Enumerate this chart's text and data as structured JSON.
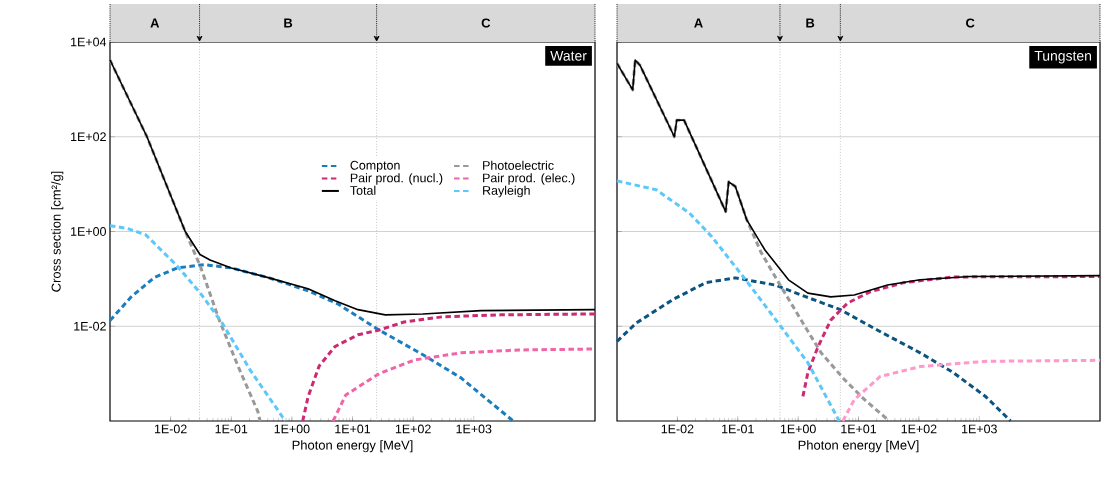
{
  "chart_data": [
    {
      "type": "line",
      "title": "Water",
      "xlabel": "Photon energy [MeV]",
      "ylabel": "Cross section [cm²/g]",
      "log": "xy",
      "grid": "y",
      "legend": "right",
      "xlim": [
        0.001,
        100000
      ],
      "ylim": [
        0.0001,
        10000
      ],
      "xticks": [
        {
          "value": 0.01,
          "label": "1E-02"
        },
        {
          "value": 0.1,
          "label": "1E-01"
        },
        {
          "value": 1,
          "label": "1E+00"
        },
        {
          "value": 10,
          "label": "1E+01"
        },
        {
          "value": 100,
          "label": "1E+02"
        },
        {
          "value": 1000,
          "label": "1E+03"
        }
      ],
      "yticks": [
        {
          "value": 0.01,
          "label": "1E-02"
        },
        {
          "value": 1,
          "label": "1E+00"
        },
        {
          "value": 100,
          "label": "1E+02"
        },
        {
          "value": 10000,
          "label": "1E+04"
        }
      ],
      "ref_lines": [
        {
          "axis": "x",
          "value": 0.03,
          "color": "#a6a6a6",
          "line_style": "dotted"
        },
        {
          "axis": "x",
          "value": 25,
          "color": "#a6a6a6",
          "line_style": "dotted"
        }
      ],
      "annotations": [
        "A",
        "B",
        "C"
      ],
      "series": [
        {
          "name": "Compton",
          "color": "#1a7dbf",
          "line_style": "dashed",
          "x": [
            0.001,
            0.00224,
            0.00537,
            0.0129,
            0.0355,
            0.1,
            0.421,
            1.85,
            5.75,
            27.5,
            145,
            617,
            4470
          ],
          "values": [
            0.0132,
            0.0417,
            0.107,
            0.17,
            0.2,
            0.17,
            0.105,
            0.0562,
            0.0295,
            0.00832,
            0.00251,
            0.000813,
            0.0001
          ]
        },
        {
          "name": "Photoelectric",
          "color": "#999999",
          "line_style": "dashed",
          "x": [
            0.001,
            0.00407,
            0.0174,
            0.0309,
            0.0631,
            0.129,
            0.275,
            0.299
          ],
          "values": [
            4170,
            100,
            1.0,
            0.186,
            0.0138,
            0.00145,
            0.000158,
            0.0001
          ]
        },
        {
          "name": "Pair prod. (nucl.)",
          "color": "#cc2a73",
          "line_style": "dashed",
          "x": [
            1.51,
            1.85,
            2.82,
            5.13,
            12.3,
            27.5,
            70.8,
            302,
            2750,
            100000
          ],
          "values": [
            0.0001,
            0.000324,
            0.00145,
            0.00372,
            0.0066,
            0.00832,
            0.0123,
            0.0158,
            0.0174,
            0.0182
          ]
        },
        {
          "name": "Pair prod. (elec.)",
          "color": "#f064a8",
          "line_style": "dashed",
          "x": [
            4.79,
            7.76,
            27.5,
            107,
            617,
            5620,
            100000
          ],
          "values": [
            0.0001,
            0.000355,
            0.001,
            0.00195,
            0.00275,
            0.00316,
            0.00331
          ]
        },
        {
          "name": "Total",
          "color": "#000000",
          "line_style": "solid",
          "x": [
            0.001,
            0.00407,
            0.0174,
            0.0305,
            0.0447,
            0.1,
            0.421,
            1.85,
            5.16,
            12.3,
            34.7,
            145,
            1320,
            100000
          ],
          "values": [
            4170,
            100,
            1.0,
            0.327,
            0.251,
            0.17,
            0.105,
            0.0617,
            0.0347,
            0.0224,
            0.0174,
            0.0182,
            0.0214,
            0.0224
          ]
        },
        {
          "name": "Rayleigh",
          "color": "#5ac8fa",
          "line_style": "dashed",
          "x": [
            0.001,
            0.0019,
            0.00389,
            0.0129,
            0.0309,
            0.0724,
            0.204,
            0.716,
            0.776
          ],
          "values": [
            1.32,
            1.17,
            0.851,
            0.186,
            0.0501,
            0.0112,
            0.0012,
            0.000117,
            0.0001
          ]
        }
      ]
    },
    {
      "type": "line",
      "title": "Tungsten",
      "xlabel": "Photon energy [MeV]",
      "log": "xy",
      "grid": "y",
      "tick_labels": "x",
      "xlim": [
        0.001,
        100000
      ],
      "ylim": [
        0.0001,
        10000
      ],
      "xticks": [
        {
          "value": 0.01,
          "label": "1E-02"
        },
        {
          "value": 0.1,
          "label": "1E-01"
        },
        {
          "value": 1,
          "label": "1E+00"
        },
        {
          "value": 10,
          "label": "1E+01"
        },
        {
          "value": 100,
          "label": "1E+02"
        },
        {
          "value": 1000,
          "label": "1E+03"
        }
      ],
      "yticks": [
        {
          "value": 0.01,
          "label": null
        },
        {
          "value": 1,
          "label": null
        },
        {
          "value": 100,
          "label": null
        },
        {
          "value": 10000,
          "label": null
        }
      ],
      "ref_lines": [
        {
          "axis": "x",
          "value": 0.5,
          "color": "#a6a6a6",
          "line_style": "dotted"
        },
        {
          "axis": "x",
          "value": 5,
          "color": "#a6a6a6",
          "line_style": "dotted"
        }
      ],
      "annotations": [
        "A",
        "B",
        "C"
      ],
      "series": [
        {
          "color": "#0b5482",
          "line_style": "dashed",
          "x": [
            0.001,
            0.00209,
            0.00832,
            0.0295,
            0.0912,
            0.417,
            1.29,
            5.01,
            20.4,
            105,
            372,
            1290,
            3310
          ],
          "values": [
            0.00479,
            0.0117,
            0.0363,
            0.0832,
            0.105,
            0.0741,
            0.0427,
            0.0224,
            0.00832,
            0.00275,
            0.00105,
            0.000324,
            0.0001
          ]
        },
        {
          "color": "#999999",
          "line_style": "dashed",
          "x": [
            0.001,
            0.00182,
            0.002,
            0.0024,
            0.00891,
            0.00977,
            0.0129,
            0.0631,
            0.0708,
            0.0912,
            0.141,
            0.245,
            0.525,
            1.12,
            2.4,
            5.89,
            12.6,
            32.4
          ],
          "values": [
            3550,
            977,
            4170,
            3240,
            100,
            224,
            224,
            2.63,
            11.2,
            8.91,
            1.76,
            0.355,
            0.0676,
            0.0135,
            0.00275,
            0.000741,
            0.000282,
            0.0001
          ]
        },
        {
          "color": "#cc2a73",
          "line_style": "dashed",
          "x": [
            1.2,
            1.45,
            2.14,
            3.47,
            6.61,
            15.8,
            56.2,
            372,
            100000
          ],
          "values": [
            0.000331,
            0.00105,
            0.00372,
            0.0135,
            0.0309,
            0.0537,
            0.0832,
            0.11,
            0.112
          ]
        },
        {
          "color": "#ff99cc",
          "line_style": "dashed",
          "x": [
            5.5,
            8.51,
            22.9,
            105,
            1290,
            100000
          ],
          "values": [
            0.0001,
            0.000282,
            0.000871,
            0.00141,
            0.00182,
            0.00191
          ]
        },
        {
          "color": "#000000",
          "line_style": "solid",
          "x": [
            0.001,
            0.00182,
            0.002,
            0.0024,
            0.00891,
            0.00977,
            0.0129,
            0.0631,
            0.0708,
            0.0912,
            0.141,
            0.282,
            0.692,
            1.45,
            3.47,
            8.51,
            30.2,
            105,
            692,
            100000
          ],
          "values": [
            3550,
            977,
            4170,
            3240,
            100,
            224,
            224,
            2.63,
            11.2,
            8.91,
            1.76,
            0.407,
            0.0955,
            0.0501,
            0.0417,
            0.0457,
            0.0741,
            0.0955,
            0.112,
            0.117
          ]
        },
        {
          "color": "#5ac8fa",
          "line_style": "dashed",
          "x": [
            0.001,
            0.00447,
            0.0158,
            0.0372,
            0.135,
            0.468,
            1.45,
            4.79
          ],
          "values": [
            11.7,
            7.59,
            2.45,
            0.776,
            0.0955,
            0.0117,
            0.0017,
            0.0001
          ]
        }
      ]
    }
  ]
}
